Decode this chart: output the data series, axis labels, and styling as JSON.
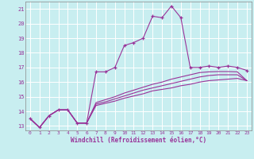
{
  "xlabel": "Windchill (Refroidissement éolien,°C)",
  "bg_color": "#c8eef0",
  "grid_color": "#ffffff",
  "line_color": "#993399",
  "xlim": [
    -0.5,
    23.5
  ],
  "ylim": [
    12.7,
    21.5
  ],
  "yticks": [
    13,
    14,
    15,
    16,
    17,
    18,
    19,
    20,
    21
  ],
  "xticks": [
    0,
    1,
    2,
    3,
    4,
    5,
    6,
    7,
    8,
    9,
    10,
    11,
    12,
    13,
    14,
    15,
    16,
    17,
    18,
    19,
    20,
    21,
    22,
    23
  ],
  "main_x": [
    0,
    1,
    2,
    3,
    4,
    5,
    6,
    7,
    8,
    9,
    10,
    11,
    12,
    13,
    14,
    15,
    16,
    17,
    18,
    19,
    20,
    21,
    22,
    23
  ],
  "main_y": [
    13.5,
    12.9,
    13.7,
    14.1,
    14.1,
    13.2,
    13.2,
    16.7,
    16.7,
    17.0,
    18.5,
    18.7,
    19.0,
    20.5,
    20.4,
    21.2,
    20.4,
    17.0,
    17.0,
    17.1,
    17.0,
    17.1,
    17.0,
    16.8
  ],
  "line2_x": [
    0,
    1,
    2,
    3,
    4,
    5,
    6,
    7,
    8,
    9,
    10,
    11,
    12,
    13,
    14,
    15,
    16,
    17,
    18,
    19,
    20,
    21,
    22,
    23
  ],
  "line2_y": [
    13.5,
    12.9,
    13.7,
    14.1,
    14.1,
    13.2,
    13.2,
    14.4,
    14.55,
    14.7,
    14.9,
    15.05,
    15.2,
    15.4,
    15.5,
    15.6,
    15.75,
    15.85,
    16.0,
    16.1,
    16.15,
    16.2,
    16.25,
    16.1
  ],
  "line3_x": [
    0,
    1,
    2,
    3,
    4,
    5,
    6,
    7,
    8,
    9,
    10,
    11,
    12,
    13,
    14,
    15,
    16,
    17,
    18,
    19,
    20,
    21,
    22,
    23
  ],
  "line3_y": [
    13.5,
    12.9,
    13.7,
    14.1,
    14.1,
    13.2,
    13.2,
    14.5,
    14.65,
    14.85,
    15.05,
    15.25,
    15.45,
    15.6,
    15.75,
    15.9,
    16.05,
    16.2,
    16.35,
    16.45,
    16.5,
    16.5,
    16.5,
    16.1
  ],
  "line4_x": [
    0,
    1,
    2,
    3,
    4,
    5,
    6,
    7,
    8,
    9,
    10,
    11,
    12,
    13,
    14,
    15,
    16,
    17,
    18,
    19,
    20,
    21,
    22,
    23
  ],
  "line4_y": [
    13.5,
    12.9,
    13.7,
    14.1,
    14.1,
    13.2,
    13.2,
    14.6,
    14.8,
    15.0,
    15.25,
    15.45,
    15.65,
    15.85,
    16.0,
    16.2,
    16.35,
    16.5,
    16.65,
    16.7,
    16.72,
    16.72,
    16.7,
    16.1
  ]
}
